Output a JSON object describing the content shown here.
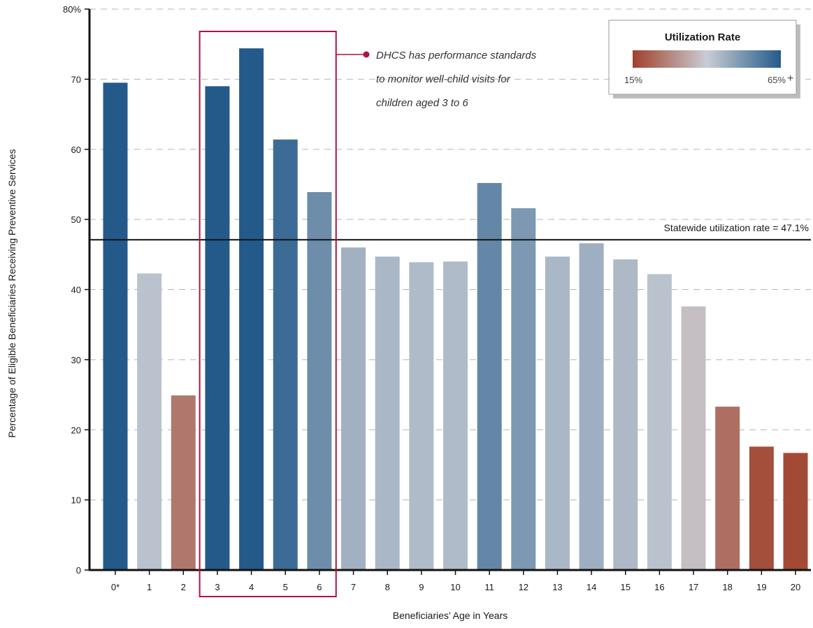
{
  "chart_data": {
    "type": "bar",
    "xlabel": "Beneficiaries’ Age in Years",
    "ylabel": "Percentage of Eligible Beneficiaries Receiving Preventive Services",
    "ylim": [
      0,
      80
    ],
    "yticks": [
      0,
      10,
      20,
      30,
      40,
      50,
      60,
      70,
      80
    ],
    "ytick_labels": [
      "0",
      "10",
      "20",
      "30",
      "40",
      "50",
      "60",
      "70",
      "80%"
    ],
    "grid": true,
    "categories": [
      "0*",
      "1",
      "2",
      "3",
      "4",
      "5",
      "6",
      "7",
      "8",
      "9",
      "10",
      "11",
      "12",
      "13",
      "14",
      "15",
      "16",
      "17",
      "18",
      "19",
      "20"
    ],
    "values": [
      69.5,
      42.3,
      24.9,
      69.0,
      74.4,
      61.4,
      53.9,
      46.0,
      44.7,
      43.9,
      44.0,
      55.2,
      51.6,
      44.7,
      46.6,
      44.3,
      42.2,
      37.6,
      23.3,
      17.6,
      16.7
    ],
    "reference_line": {
      "value": 47.1,
      "label": "Statewide utilization rate = 47.1%"
    },
    "highlight": {
      "categories": [
        "3",
        "4",
        "5",
        "6"
      ],
      "color": "#b0123f"
    },
    "annotation": {
      "lines": [
        "DHCS has performance standards",
        "to monitor well-child visits for",
        "children aged 3 to 6"
      ]
    },
    "legend": {
      "title": "Utilization Rate",
      "min_label": "15%",
      "max_label": "65%",
      "max_suffix": "+",
      "min_value": 15,
      "max_value": 65,
      "placement": "top-right"
    },
    "colors": {
      "low": "#a0402a",
      "mid": "#c9cdd4",
      "high": "#245a8a",
      "highlight": "#b0123f",
      "grid": "#b5b5b5",
      "axis": "#111111"
    }
  }
}
